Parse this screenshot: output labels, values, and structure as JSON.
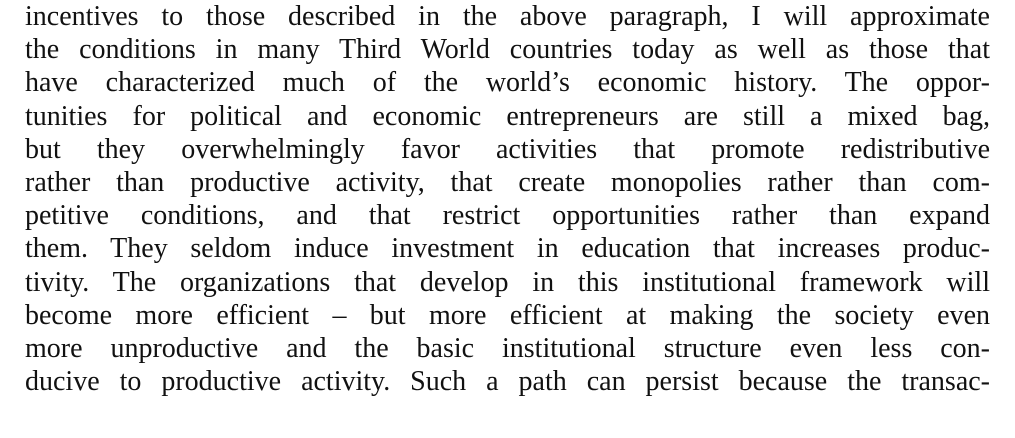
{
  "document": {
    "lines": [
      "incentives to those described in the above paragraph, I will approximate",
      "the conditions in many Third World countries today as well as those that",
      "have characterized much of the world’s economic history. The oppor-",
      "tunities for political and economic entrepreneurs are still a mixed bag,",
      "but they overwhelmingly favor activities that promote redistributive",
      "rather than productive activity, that create monopolies rather than com-",
      "petitive conditions, and that restrict opportunities rather than expand",
      "them. They seldom induce investment in education that increases produc-",
      "tivity. The organizations that develop in this institutional framework will",
      "become more efficient – but more efficient at making the society even",
      "more unproductive and the basic institutional structure even less con-",
      "ducive to productive activity. Such a path can persist because the transac-"
    ]
  }
}
